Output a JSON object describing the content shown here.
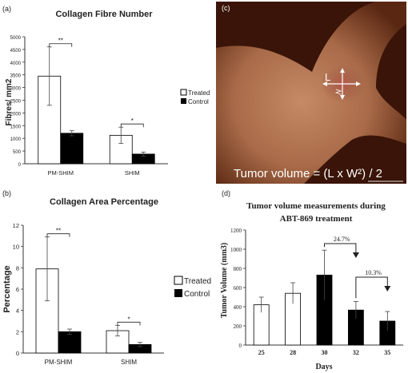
{
  "panels": {
    "a": {
      "label": "(a)"
    },
    "b": {
      "label": "(b)"
    },
    "c": {
      "label": "(c)",
      "L_label": "L",
      "formula": "Tumor volume = (L x W²) / 2"
    },
    "d": {
      "label": "(d)"
    }
  },
  "colors": {
    "treated": "#ffffff",
    "control": "#000000",
    "photo_bg": "#3a1408",
    "tissue": "#c98a62"
  },
  "chart_data": [
    {
      "id": "a",
      "type": "bar",
      "title": "Collagen Fibre Number",
      "ylabel": "Fibres/ mm2",
      "ylim": [
        0,
        5000
      ],
      "yticks": [
        "0",
        "500",
        "1000",
        "1500",
        "2000",
        "2500",
        "3000",
        "3500",
        "4000",
        "4500",
        "5000"
      ],
      "categories": [
        "PM-SHIM",
        "SHIM"
      ],
      "series": [
        {
          "name": "Treated",
          "values": [
            3450,
            1120
          ],
          "errors": [
            1150,
            320
          ]
        },
        {
          "name": "Control",
          "values": [
            1200,
            380
          ],
          "errors": [
            100,
            80
          ]
        }
      ],
      "significance": [
        "**",
        "*"
      ],
      "legend": "right"
    },
    {
      "id": "b",
      "type": "bar",
      "title": "Collagen Area Percentage",
      "ylabel": "Percentage",
      "ylim": [
        0,
        12
      ],
      "yticks": [
        "0",
        "2",
        "4",
        "6",
        "8",
        "10",
        "12"
      ],
      "categories": [
        "PM-SHIM",
        "SHIM"
      ],
      "series": [
        {
          "name": "Treated",
          "values": [
            7.9,
            2.1
          ],
          "errors": [
            3.0,
            0.5
          ]
        },
        {
          "name": "Control",
          "values": [
            2.0,
            0.8
          ],
          "errors": [
            0.25,
            0.2
          ]
        }
      ],
      "significance": [
        "**",
        "*"
      ],
      "legend": "right"
    },
    {
      "id": "d",
      "type": "bar",
      "title": "Tumor volume measurements during",
      "subtitle": "ABT-869 treatment",
      "xlabel": "Days",
      "ylabel": "Tumor Volume (mm3)",
      "ylim": [
        0,
        1200
      ],
      "yticks": [
        "0",
        "200",
        "400",
        "600",
        "800",
        "1000",
        "1200"
      ],
      "categories": [
        "25",
        "28",
        "30",
        "32",
        "35"
      ],
      "values": [
        420,
        540,
        730,
        365,
        250
      ],
      "errors": [
        80,
        110,
        260,
        90,
        100
      ],
      "fills": [
        "white",
        "white",
        "black",
        "black",
        "black"
      ],
      "annotations": [
        "24.7%",
        "10.3%"
      ]
    }
  ]
}
